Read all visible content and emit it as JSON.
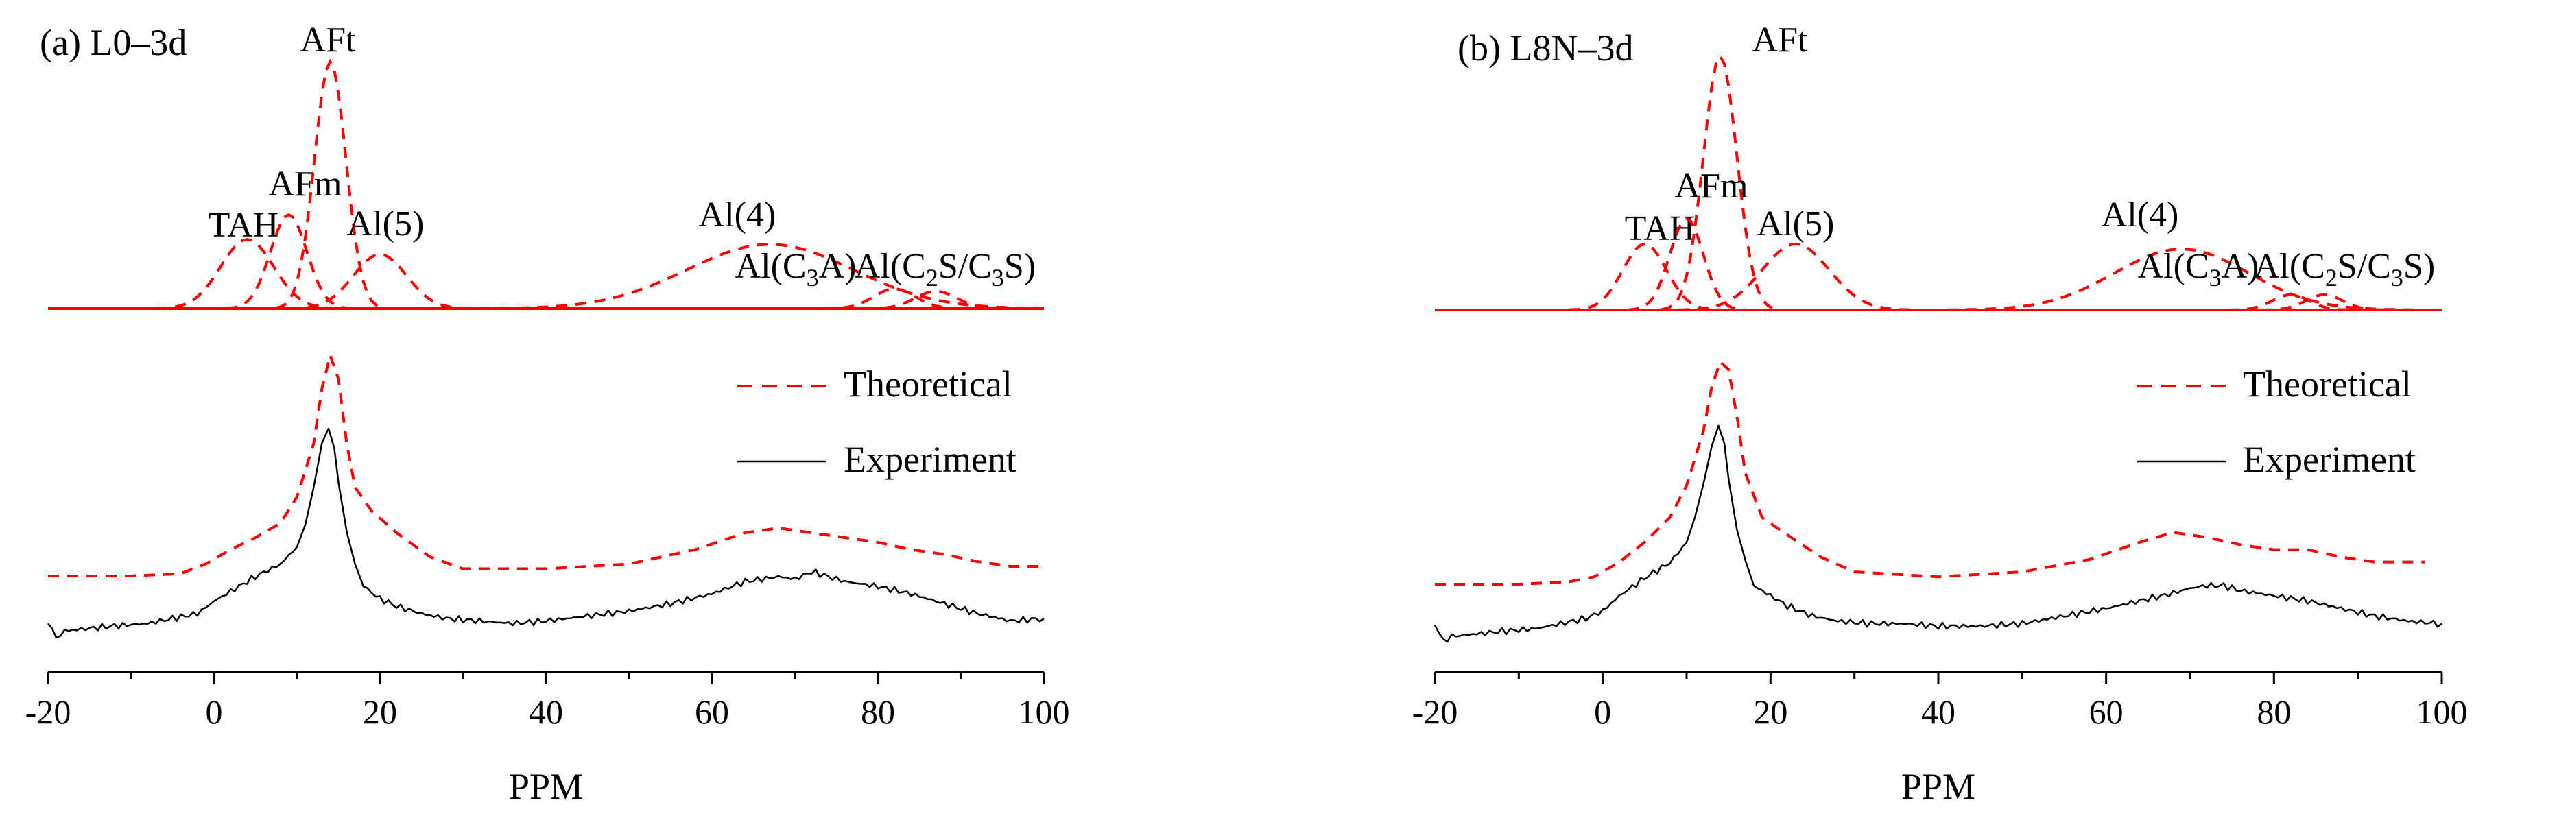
{
  "colors": {
    "theoretical": "#ff0000",
    "experiment": "#000000",
    "axis": "#000000"
  },
  "chart_data": [
    {
      "type": "line",
      "panel_label": "(a) L0–3d",
      "xlabel": "PPM",
      "xlim": [
        -20,
        100
      ],
      "xticks": [
        "-20",
        "0",
        "20",
        "40",
        "60",
        "80",
        "100"
      ],
      "xtick_values": [
        -20,
        0,
        20,
        40,
        60,
        80,
        100
      ],
      "yaxis": "hidden",
      "legend": {
        "position": "right",
        "theoretical": "Theoretical",
        "experiment": "Experiment"
      },
      "deconvolution_peaks": [
        {
          "name": "TAH",
          "label_text": "TAH",
          "center": 4,
          "width": 3.2,
          "height": 0.28
        },
        {
          "name": "AFm",
          "label_text": "AFm",
          "center": 9,
          "width": 2.2,
          "height": 0.38
        },
        {
          "name": "AFt",
          "label_text": "AFt",
          "center": 14,
          "width": 1.9,
          "height": 1.0
        },
        {
          "name": "Al(5)",
          "label_text": "Al(5)",
          "center": 20,
          "width": 3.2,
          "height": 0.22
        },
        {
          "name": "Al(4)",
          "label_text": "Al(4)",
          "center": 67,
          "width": 10,
          "height": 0.26
        },
        {
          "name": "Al(C3A)",
          "label_parts": [
            "Al(C",
            "3",
            "A)"
          ],
          "center": 82,
          "width": 2.5,
          "height": 0.08
        },
        {
          "name": "Al(C2S/C3S)",
          "label_parts": [
            "Al(C",
            "2",
            "S/C",
            "3",
            "S)"
          ],
          "center": 87,
          "width": 2.5,
          "height": 0.07
        }
      ],
      "theoretical_sum": {
        "x": [
          -20,
          -10,
          -4,
          -1,
          2,
          5,
          8,
          10,
          12,
          13,
          14,
          15,
          16,
          17,
          19,
          22,
          26,
          30,
          40,
          50,
          58,
          64,
          68,
          72,
          76,
          80,
          84,
          88,
          92,
          96,
          100
        ],
        "y": [
          0.0,
          0.0,
          0.01,
          0.05,
          0.11,
          0.16,
          0.22,
          0.33,
          0.55,
          0.78,
          0.92,
          0.82,
          0.55,
          0.37,
          0.27,
          0.18,
          0.08,
          0.03,
          0.03,
          0.05,
          0.11,
          0.18,
          0.2,
          0.18,
          0.16,
          0.14,
          0.11,
          0.09,
          0.06,
          0.04,
          0.04
        ]
      },
      "experiment": {
        "x": [
          -20,
          -19,
          -18,
          -15,
          -12,
          -8,
          -5,
          -2,
          0,
          2,
          5,
          8,
          10,
          11,
          12,
          13,
          13.8,
          14.5,
          15,
          16,
          17,
          18,
          20,
          22,
          25,
          28,
          32,
          36,
          40,
          45,
          50,
          55,
          60,
          64,
          68,
          70,
          72,
          74,
          76,
          80,
          84,
          88,
          92,
          96,
          100
        ],
        "y": [
          0.04,
          -0.03,
          0.0,
          0.01,
          0.02,
          0.03,
          0.05,
          0.07,
          0.12,
          0.16,
          0.22,
          0.27,
          0.34,
          0.43,
          0.58,
          0.76,
          0.82,
          0.74,
          0.6,
          0.4,
          0.27,
          0.18,
          0.13,
          0.1,
          0.07,
          0.05,
          0.04,
          0.03,
          0.04,
          0.06,
          0.08,
          0.11,
          0.15,
          0.2,
          0.22,
          0.21,
          0.24,
          0.22,
          0.2,
          0.18,
          0.15,
          0.11,
          0.07,
          0.04,
          0.05
        ]
      }
    },
    {
      "type": "line",
      "panel_label": "(b) L8N–3d",
      "xlabel": "PPM",
      "xlim": [
        -20,
        100
      ],
      "xticks": [
        "-20",
        "0",
        "20",
        "40",
        "60",
        "80",
        "100"
      ],
      "xtick_values": [
        -20,
        0,
        20,
        40,
        60,
        80,
        100
      ],
      "yaxis": "hidden",
      "legend": {
        "position": "right",
        "theoretical": "Theoretical",
        "experiment": "Experiment"
      },
      "deconvolution_peaks": [
        {
          "name": "TAH",
          "label_text": "TAH",
          "center": 5,
          "width": 2.6,
          "height": 0.26
        },
        {
          "name": "AFm",
          "label_text": "AFm",
          "center": 10,
          "width": 2.0,
          "height": 0.36
        },
        {
          "name": "AFt",
          "label_text": "AFt",
          "center": 14,
          "width": 2.0,
          "height": 1.0
        },
        {
          "name": "Al(5)",
          "label_text": "Al(5)",
          "center": 23,
          "width": 4,
          "height": 0.26
        },
        {
          "name": "Al(4)",
          "label_text": "Al(4)",
          "center": 69,
          "width": 8,
          "height": 0.24
        },
        {
          "name": "Al(C3A)",
          "label_parts": [
            "Al(C",
            "3",
            "A)"
          ],
          "center": 82,
          "width": 2.2,
          "height": 0.06
        },
        {
          "name": "Al(C2S/C3S)",
          "label_parts": [
            "Al(C",
            "2",
            "S/C",
            "3",
            "S)"
          ],
          "center": 86,
          "width": 2.2,
          "height": 0.06
        }
      ],
      "theoretical_sum": {
        "x": [
          -20,
          -10,
          -4,
          -1,
          2,
          5,
          8,
          10,
          12,
          13,
          14,
          15,
          16,
          17,
          19,
          22,
          26,
          30,
          40,
          50,
          58,
          64,
          68,
          72,
          76,
          80,
          84,
          88,
          92,
          96,
          98
        ],
        "y": [
          0.0,
          0.0,
          0.01,
          0.03,
          0.09,
          0.17,
          0.27,
          0.4,
          0.62,
          0.8,
          0.9,
          0.87,
          0.68,
          0.45,
          0.27,
          0.2,
          0.11,
          0.05,
          0.03,
          0.05,
          0.1,
          0.17,
          0.21,
          0.19,
          0.16,
          0.14,
          0.14,
          0.11,
          0.09,
          0.09,
          0.09
        ]
      },
      "experiment": {
        "x": [
          -20,
          -19,
          -18,
          -15,
          -12,
          -8,
          -5,
          -2,
          0,
          2,
          5,
          8,
          10,
          11,
          12,
          13,
          13.8,
          14.5,
          15,
          16,
          17,
          18,
          20,
          22,
          25,
          28,
          32,
          36,
          40,
          45,
          50,
          55,
          60,
          64,
          68,
          70,
          72,
          74,
          76,
          80,
          84,
          88,
          92,
          96,
          100
        ],
        "y": [
          0.05,
          -0.02,
          0.0,
          0.01,
          0.02,
          0.03,
          0.05,
          0.07,
          0.1,
          0.16,
          0.23,
          0.29,
          0.37,
          0.47,
          0.6,
          0.75,
          0.83,
          0.76,
          0.62,
          0.42,
          0.3,
          0.2,
          0.16,
          0.12,
          0.08,
          0.06,
          0.05,
          0.05,
          0.04,
          0.04,
          0.05,
          0.08,
          0.11,
          0.14,
          0.17,
          0.19,
          0.2,
          0.2,
          0.18,
          0.16,
          0.14,
          0.11,
          0.08,
          0.06,
          0.05
        ]
      }
    }
  ]
}
